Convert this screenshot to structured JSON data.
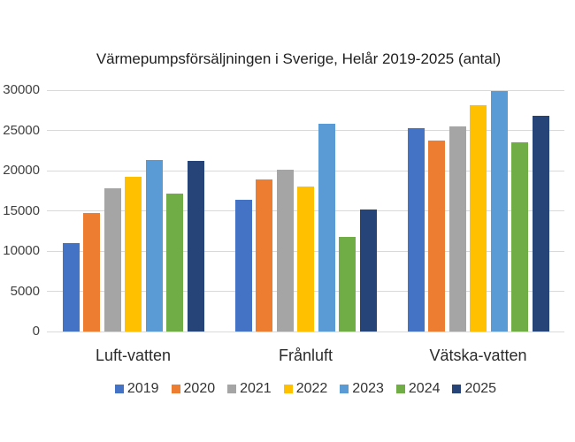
{
  "chart_data": {
    "type": "bar",
    "title": "Värmepumpsförsäljningen i Sverige, Helår 2019-2025 (antal)",
    "xlabel": "",
    "ylabel": "",
    "categories": [
      "Luft-vatten",
      "Frånluft",
      "Vätska-vatten"
    ],
    "series": [
      {
        "name": "2019",
        "color": "#4472C4",
        "values": [
          11000,
          16400,
          25300
        ]
      },
      {
        "name": "2020",
        "color": "#ED7D31",
        "values": [
          14700,
          18900,
          23700
        ]
      },
      {
        "name": "2021",
        "color": "#A5A5A5",
        "values": [
          17800,
          20100,
          25500
        ]
      },
      {
        "name": "2022",
        "color": "#FFC000",
        "values": [
          19200,
          18000,
          28100
        ]
      },
      {
        "name": "2023",
        "color": "#5B9BD5",
        "values": [
          21300,
          25800,
          29900
        ]
      },
      {
        "name": "2024",
        "color": "#70AD47",
        "values": [
          17100,
          11800,
          23500
        ]
      },
      {
        "name": "2025",
        "color": "#264478",
        "values": [
          21200,
          15200,
          26800
        ]
      }
    ],
    "ylim": [
      0,
      30000
    ],
    "yticks": [
      0,
      5000,
      10000,
      15000,
      20000,
      25000,
      30000
    ],
    "grid": true,
    "legend_position": "bottom"
  },
  "style": {
    "gridline_color": "#D9D9D9",
    "axis_text_color": "#404040",
    "background": "#FFFFFF"
  }
}
